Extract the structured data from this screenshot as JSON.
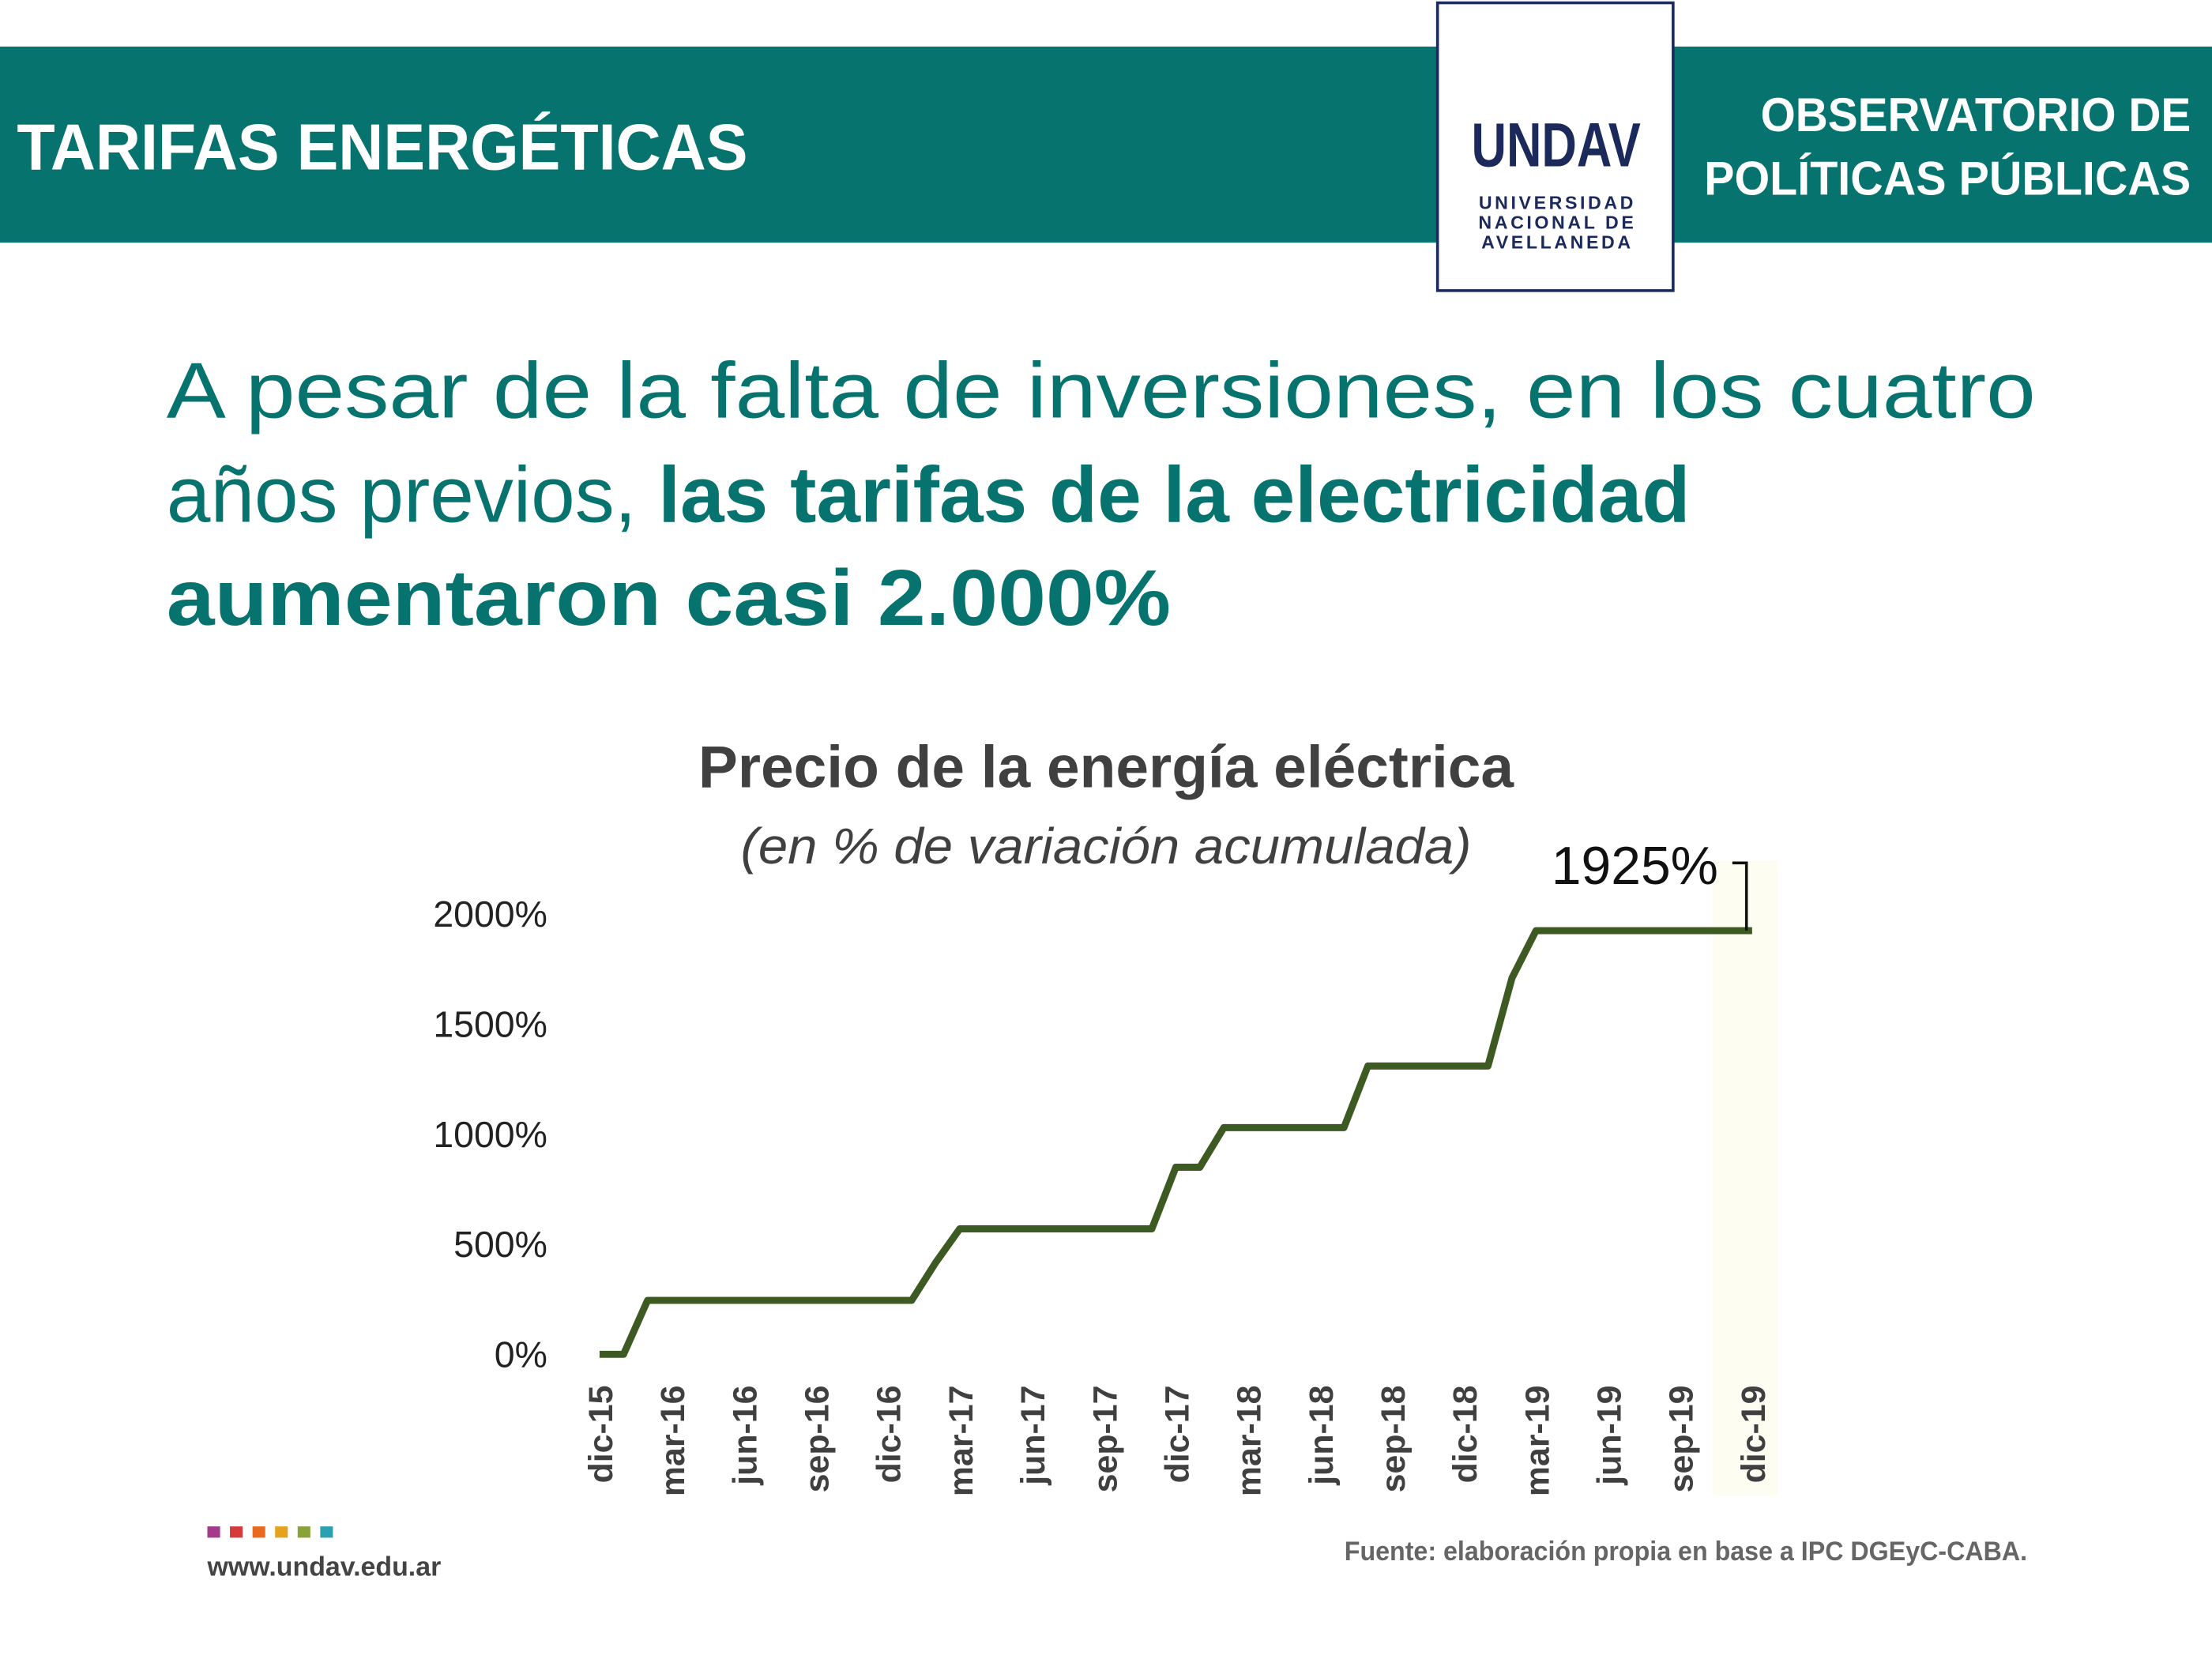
{
  "header": {
    "title": "TARIFAS ENERGÉTICAS",
    "right_lines": [
      "OBSERVATORIO DE",
      "POLÍTICAS PÚBLICAS"
    ],
    "logo": "UNDAV",
    "logo_lines": [
      "UNIVERSIDAD",
      "NACIONAL DE",
      "AVELLANEDA"
    ]
  },
  "headline": {
    "lines": [
      "A pesar de la falta de inversiones, en los cuatro",
      "años previos, "
    ],
    "bold_lines": [
      "las tarifas de la electricidad",
      "aumentaron casi 2.000%"
    ]
  },
  "chart_data": {
    "type": "line",
    "title": "Precio de la energía eléctrica",
    "subtitle": "(en % de variación acumulada)",
    "categories": [
      "dic-15",
      null,
      null,
      "mar-16",
      null,
      null,
      "jun-16",
      null,
      null,
      "sep-16",
      null,
      null,
      "dic-16",
      null,
      null,
      "mar-17",
      null,
      null,
      "jun-17",
      null,
      null,
      "sep-17",
      null,
      null,
      "dic-17",
      null,
      null,
      "mar-18",
      null,
      null,
      "jun-18",
      null,
      null,
      "sep-18",
      null,
      null,
      "dic-18",
      null,
      null,
      "mar-19",
      null,
      null,
      "jun-19",
      null,
      null,
      "sep-19",
      null,
      null,
      "dic-19"
    ],
    "series": [
      {
        "name": null,
        "color": "#3d5a22",
        "values": [
          0,
          0,
          245,
          245,
          245,
          245,
          245,
          245,
          245,
          245,
          245,
          245,
          245,
          245,
          417,
          570,
          570,
          570,
          570,
          570,
          570,
          570,
          570,
          570,
          850,
          850,
          1030,
          1030,
          1030,
          1030,
          1030,
          1030,
          1310,
          1310,
          1310,
          1310,
          1310,
          1310,
          1710,
          1925,
          1925,
          1925,
          1925,
          1925,
          1925,
          1925,
          1925,
          1925,
          1925
        ],
        "value_labels": [
          null,
          null,
          null,
          null,
          null,
          null,
          null,
          null,
          null,
          null,
          null,
          null,
          null,
          null,
          null,
          null,
          null,
          null,
          null,
          null,
          null,
          null,
          null,
          null,
          null,
          null,
          null,
          null,
          null,
          null,
          null,
          null,
          null,
          null,
          null,
          null,
          null,
          null,
          null,
          null,
          null,
          null,
          null,
          null,
          null,
          null,
          null,
          null,
          "1925%"
        ]
      }
    ],
    "ylim": [
      0,
      2000
    ],
    "yticks": [
      {
        "value": 0,
        "label": "0%"
      },
      {
        "value": 500,
        "label": "500%"
      },
      {
        "value": 1000,
        "label": "1000%"
      },
      {
        "value": 1500,
        "label": "1500%"
      },
      {
        "value": 2000,
        "label": "2000%"
      }
    ],
    "grid": false
  },
  "footer": {
    "website": "www.undav.edu.ar",
    "source": "Fuente: elaboración propia en base a IPC DGEyC-CABA."
  }
}
